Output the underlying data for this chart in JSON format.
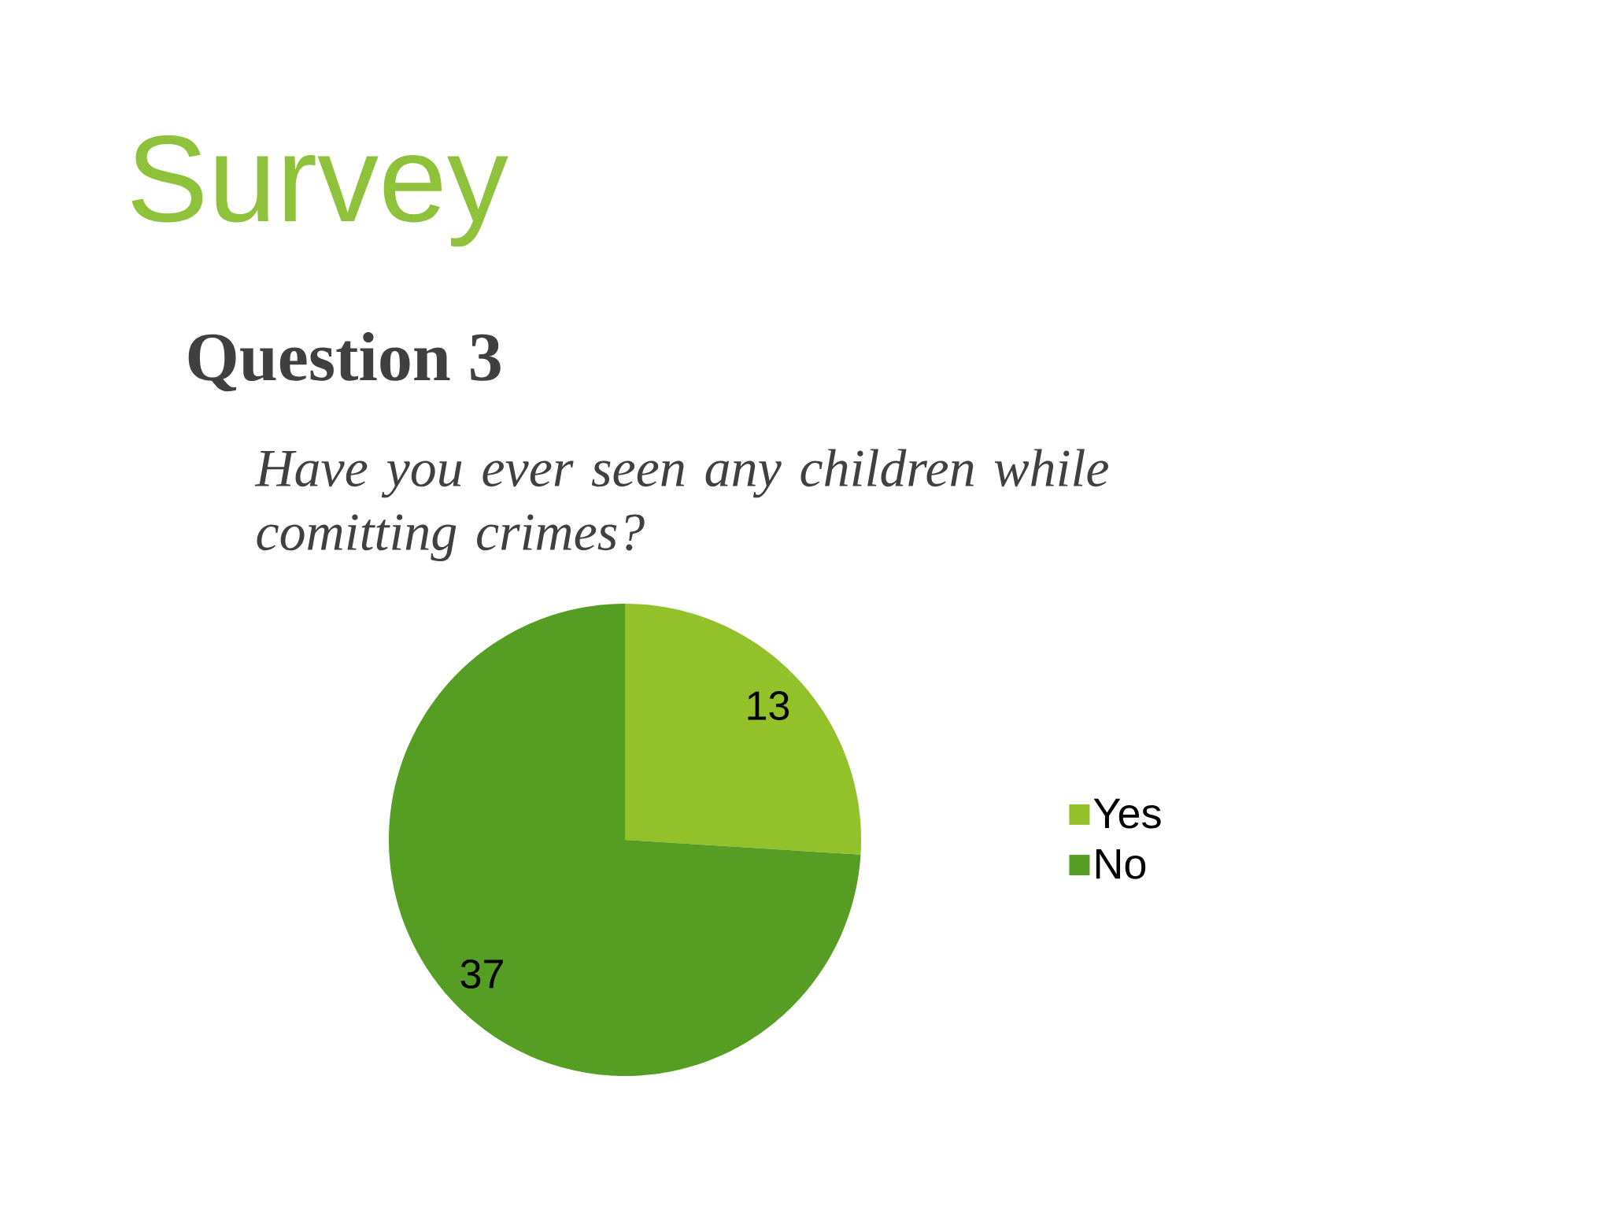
{
  "chart_data": {
    "type": "pie",
    "title": "Survey",
    "subtitle": "Question 3",
    "annotations": [
      "Have you ever seen any children while comitting crimes?"
    ],
    "categories": [
      "Yes",
      "No"
    ],
    "values": [
      13,
      37
    ],
    "colors": [
      "#92c12a",
      "#559e23"
    ],
    "data_labels": true,
    "legend": "right"
  }
}
